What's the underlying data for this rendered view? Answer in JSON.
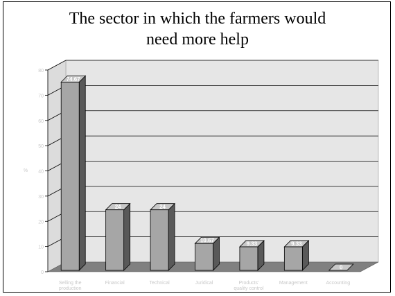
{
  "chart_data": {
    "type": "bar",
    "title": "The sector in which the farmers would need more help",
    "title_lines": [
      "The sector in which the farmers would",
      "need more help"
    ],
    "ylabel": "%",
    "xlabel": "",
    "categories": [
      [
        "Selling the",
        "production"
      ],
      [
        "Financial"
      ],
      [
        "Technical"
      ],
      [
        "Juridical"
      ],
      [
        "Products'",
        "quality control"
      ],
      [
        "Management"
      ],
      [
        "Accounting"
      ]
    ],
    "values": [
      74.67,
      24,
      24,
      10.67,
      9.33,
      9.33,
      0
    ],
    "value_labels": [
      "74.67",
      "24",
      "24",
      "10.67",
      "9.33",
      "9.33",
      "0"
    ],
    "ylim": [
      0,
      80
    ],
    "yticks": [
      "0",
      "10",
      "20",
      "30",
      "40",
      "50",
      "60",
      "70",
      "80"
    ],
    "grid": true,
    "legend": "none",
    "colors": {
      "bar_front": "#a6a6a6",
      "bar_side": "#595959",
      "bar_top": "#c8c8c8",
      "wall": "#e6e6e6",
      "floor": "#808080",
      "grid": "#000000"
    }
  }
}
